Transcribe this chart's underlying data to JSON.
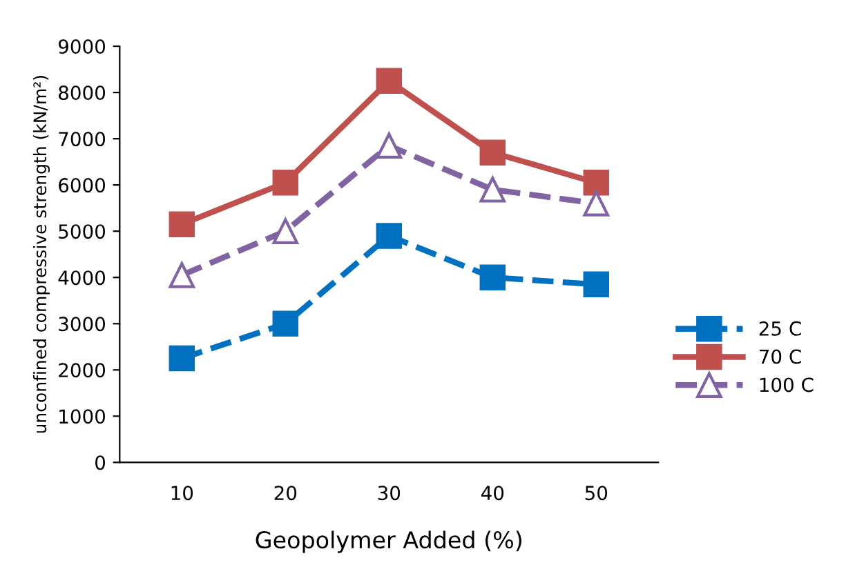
{
  "chart_data": {
    "type": "line",
    "xlabel": "Geopolymer Added (%)",
    "ylabel": "unconfined compressive strength (kN/m²)",
    "categories": [
      "10",
      "20",
      "30",
      "40",
      "50"
    ],
    "series": [
      {
        "name": "25 C",
        "color": "#0070c0",
        "values": [
          2250,
          3000,
          4900,
          4000,
          3850
        ],
        "marker": "square",
        "line_style": "dashed"
      },
      {
        "name": "70 C",
        "color": "#c0504d",
        "values": [
          5150,
          6050,
          8250,
          6700,
          6050
        ],
        "marker": "square",
        "line_style": "solid"
      },
      {
        "name": "100 C",
        "color": "#8064a2",
        "values": [
          4050,
          5000,
          6850,
          5900,
          5600
        ],
        "marker": "triangle",
        "line_style": "dashed"
      }
    ],
    "ylim": [
      0,
      9000
    ],
    "yticks": [
      0,
      1000,
      2000,
      3000,
      4000,
      5000,
      6000,
      7000,
      8000,
      9000
    ],
    "grid": false,
    "legend": "right"
  }
}
